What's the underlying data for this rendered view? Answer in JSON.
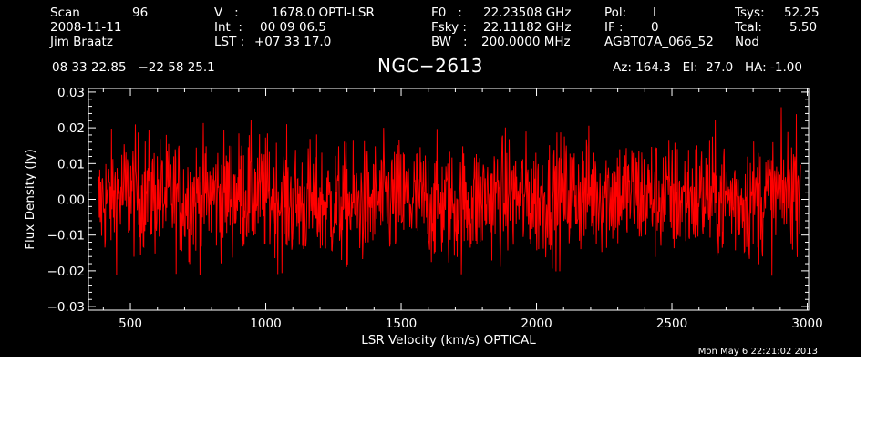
{
  "header": {
    "col1": [
      {
        "label": "Scan",
        "value": "96"
      },
      {
        "label": "2008-11-11",
        "value": ""
      },
      {
        "label": "Jim Braatz",
        "value": ""
      }
    ],
    "col2": [
      {
        "label": "V   :",
        "value": "1678.0 OPTI-LSR"
      },
      {
        "label": "Int  :",
        "value": "00 09 06.5"
      },
      {
        "label": "LST :",
        "value": "+07 33 17.0"
      }
    ],
    "col3": [
      {
        "label": "F0   :",
        "value": "22.23508 GHz"
      },
      {
        "label": "Fsky :",
        "value": "22.11182 GHz"
      },
      {
        "label": "BW   :",
        "value": "200.0000 MHz"
      }
    ],
    "col4": [
      {
        "label": "Pol:",
        "value": "I"
      },
      {
        "label": "IF :",
        "value": "0"
      },
      {
        "label": "AGBT07A_066_52",
        "value": ""
      }
    ],
    "col5": [
      {
        "label": "Tsys:",
        "value": "52.25"
      },
      {
        "label": "Tcal:",
        "value": "5.50"
      },
      {
        "label": "Nod",
        "value": ""
      }
    ],
    "coords": "08 33 22.85   −22 58 25.1",
    "pointing": "Az: 164.3   El:  27.0   HA: -1.00",
    "timestamp": "Mon May  6 22:21:02 2013"
  },
  "colors": {
    "background": "#000000",
    "foreground": "#ffffff",
    "series": "#ff0000"
  },
  "chart_data": {
    "type": "line",
    "title": "NGC−2613",
    "xlabel": "LSR Velocity (km/s) OPTICAL",
    "ylabel": "Flux Density (Jy)",
    "xlim": [
      345,
      3005
    ],
    "ylim": [
      -0.031,
      0.031
    ],
    "x_ticks": [
      500,
      1000,
      1500,
      2000,
      2500,
      3000
    ],
    "x_tick_labels": [
      "500",
      "1000",
      "1500",
      "2000",
      "2500",
      "3000"
    ],
    "y_ticks": [
      -0.03,
      -0.02,
      -0.01,
      0.0,
      0.01,
      0.02,
      0.03
    ],
    "y_tick_labels": [
      "−0.03",
      "−0.02",
      "−0.01",
      "0.00",
      "0.01",
      "0.02",
      "0.03"
    ],
    "grid": false,
    "series": [
      {
        "color": "#ff0000",
        "x": [
          380,
          400,
          500,
          600,
          700,
          800,
          900,
          1000,
          1100,
          1200,
          1300,
          1400,
          1500,
          1600,
          1700,
          1800,
          1900,
          2000,
          2100,
          2200,
          2300,
          2400,
          2500,
          2600,
          2700,
          2800,
          2900,
          2975
        ],
        "y": [
          -0.003,
          0.0,
          0.002,
          0.001,
          0.0,
          0.001,
          0.002,
          0.001,
          -0.001,
          -0.001,
          -0.002,
          -0.001,
          0.0,
          -0.001,
          -0.002,
          0.0,
          0.001,
          0.0,
          0.001,
          0.002,
          0.002,
          0.001,
          0.0,
          0.001,
          0.0,
          0.0,
          0.001,
          0.006
        ]
      }
    ]
  }
}
